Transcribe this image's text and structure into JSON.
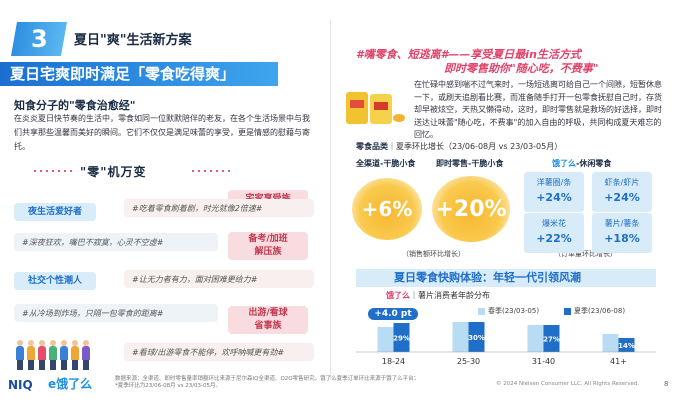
{
  "header": {
    "number": "3",
    "title": "夏日\"爽\"生活新方案",
    "band": "夏日宅爽即时满足「零食吃得爽」"
  },
  "left": {
    "section_title": "知食分子的\"零食治愈经\"",
    "body": "在炎炎夏日快节奏的生活中，零食如同一位默默陪伴的老友，在各个生活场景中与我们共享那些温馨而美好的瞬间。它们不仅仅是满足味蕾的享受，更是情感的慰藉与寄托。",
    "ling_title": "\"零\"机万变",
    "tags": {
      "home": "宅家享受族",
      "night": "夜生活爱好者",
      "exam": "备考/加班\n解压族",
      "social": "社交个性潮人",
      "travel": "出游/看球\n省事族"
    },
    "quotes": {
      "q1": "#吃着零食刷着剧，时光就像2倍速#",
      "q2": "#深夜狂欢，嘴巴不寂寞，心灵不空虚#",
      "q3": "#让无力者有力，面对困难更给力#",
      "q4": "#从冷场到炸场，只隔一包零食的距离#",
      "q5": "#看球/出游零食不能停，欢呼呐喊更有劲#"
    }
  },
  "right": {
    "title1": "#嘴零食、短逃离#——享受夏日最in生活方式",
    "title2": "即时零售助你\"随心吃，不费事\"",
    "body": "在忙碌中感到喘不过气来时，一场短逃离可给自己一个间隙，短暂休息一下，或刷天追剧看比赛，而准备随手打开一包零食抚慰自己时，存货却早被炫空，天热又懒得动，这时，即时零售就是救场的好选择，即时送达让味蕾\"随心吃，不费事\"的加入自由的呼吸，共同构成夏天难忘的回忆。",
    "category_prefix": "零食品类",
    "category_rest": "｜夏季环比增长（23/06-08月 vs 23/03-05月）",
    "labels": {
      "all": "全渠道-干脆小食",
      "instant": "即时零售-干脆小食",
      "eleme": "饿了么",
      "eleme_rest": "-休闲零食"
    },
    "circle_all": "+6%",
    "circle_instant": "+20%",
    "note_left": "（销售额环比增长）",
    "note_right": "（订单量环比增长）",
    "minis": [
      {
        "name": "洋薯圈/条",
        "value": "+24%"
      },
      {
        "name": "虾条/虾片",
        "value": "+24%"
      },
      {
        "name": "爆米花",
        "value": "+22%"
      },
      {
        "name": "薯片/薯条",
        "value": "+18%"
      }
    ],
    "bar_title": "夏日零食快购体验：年轻一代引领风潮",
    "bar_sub_brand": "饿了么",
    "bar_sub_rest": "｜薯片消费者年龄分布",
    "pill": "+4.0 pt",
    "legend_spring": "春季(23/03-05)",
    "legend_summer": "夏季(23/06-08)"
  },
  "chart_data": {
    "type": "bar",
    "categories": [
      "18-24",
      "25-30",
      "31-40",
      "41+"
    ],
    "series": [
      {
        "name": "春季(23/03-05)",
        "values": [
          25,
          30,
          27,
          18
        ]
      },
      {
        "name": "夏季(23/06-08)",
        "values": [
          29,
          30,
          27,
          14
        ]
      }
    ],
    "data_labels": [
      "29%",
      "30%",
      "27%",
      "14%"
    ],
    "colors": {
      "spring": "#b9dcf5",
      "summer": "#1f6ec8"
    }
  },
  "footer": {
    "logo1": "NIQ",
    "logo2": "e饿了么",
    "source": "数据来源：全渠道、即时零售量率销额环比来源于尼尔森IQ全渠道、O2O零售研究，饿了么夏季订单环比来源于饿了么平台；\n*夏季环比为23/06-08月 vs 23/03-05月。",
    "copyright": "© 2024 Nielsen Consumer LLC. All Rights Reserved.",
    "page": "8"
  }
}
